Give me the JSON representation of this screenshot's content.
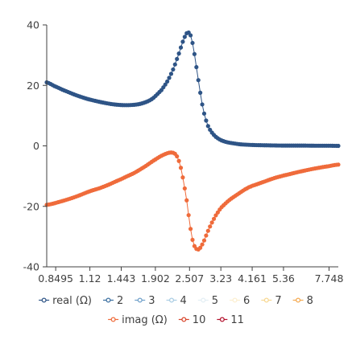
{
  "chart_data": {
    "type": "scatter",
    "x_scale": "log",
    "x_tick_labels": [
      "0.8495",
      "1.12",
      "1.443",
      "1.902",
      "2.507",
      "3.23",
      "4.161",
      "5.36",
      "7.748"
    ],
    "x_tick_values": [
      0.8495,
      1.12,
      1.443,
      1.902,
      2.507,
      3.23,
      4.161,
      5.36,
      7.748
    ],
    "xlim": [
      0.79,
      8.35
    ],
    "y_tick_labels": [
      "40",
      "20",
      "0",
      "-20",
      "-40"
    ],
    "y_tick_values": [
      40,
      20,
      0,
      -20,
      -40
    ],
    "ylim": [
      -40,
      40
    ],
    "grid": false,
    "legend_position": "bottom",
    "series": [
      {
        "name": "real (Ω)",
        "color": "#2e5486",
        "x": [
          0.79,
          0.84,
          0.9,
          1.0,
          1.1,
          1.25,
          1.4,
          1.55,
          1.7,
          1.85,
          2.0,
          2.1,
          2.2,
          2.3,
          2.4,
          2.47,
          2.53,
          2.58,
          2.64,
          2.72,
          2.8,
          2.9,
          3.0,
          3.1,
          3.23,
          3.4,
          3.6,
          3.8,
          4.161,
          4.6,
          5.36,
          6.2,
          7.0,
          7.748,
          8.35
        ],
        "y": [
          21,
          19.8,
          18.5,
          16.8,
          15.5,
          14.3,
          13.6,
          13.5,
          14.0,
          15.5,
          18.5,
          21.5,
          25.5,
          30.5,
          35.5,
          37.5,
          36.5,
          33.0,
          27.0,
          19.0,
          12.0,
          7.0,
          4.5,
          3.0,
          1.9,
          1.2,
          0.8,
          0.5,
          0.3,
          0.2,
          0.1,
          0.1,
          0.05,
          0.05,
          0.0
        ]
      },
      {
        "name": "2",
        "color": "#3b6fa0",
        "x": [],
        "y": []
      },
      {
        "name": "3",
        "color": "#6e9fc9",
        "x": [],
        "y": []
      },
      {
        "name": "4",
        "color": "#a9cce3",
        "x": [],
        "y": []
      },
      {
        "name": "5",
        "color": "#e3eef4",
        "x": [],
        "y": []
      },
      {
        "name": "6",
        "color": "#fcefd0",
        "x": [],
        "y": []
      },
      {
        "name": "7",
        "color": "#f8d891",
        "x": [],
        "y": []
      },
      {
        "name": "8",
        "color": "#f4a94f",
        "x": [],
        "y": []
      },
      {
        "name": "imag (Ω)",
        "color": "#ef6b3b",
        "x": [
          0.79,
          0.9,
          1.0,
          1.12,
          1.25,
          1.443,
          1.6,
          1.75,
          1.902,
          2.05,
          2.17,
          2.25,
          2.32,
          2.38,
          2.45,
          2.507,
          2.56,
          2.62,
          2.7,
          2.8,
          2.9,
          3.0,
          3.1,
          3.23,
          3.45,
          3.7,
          4.0,
          4.161,
          4.6,
          5.0,
          5.36,
          6.0,
          6.8,
          7.748,
          8.35
        ],
        "y": [
          -19.5,
          -18.2,
          -16.8,
          -15.0,
          -13.5,
          -11.0,
          -9.0,
          -6.8,
          -4.5,
          -2.8,
          -2.2,
          -3.0,
          -6.0,
          -11.0,
          -18.0,
          -25.0,
          -30.5,
          -33.5,
          -34.2,
          -32.0,
          -28.5,
          -25.5,
          -23.0,
          -20.5,
          -18.0,
          -16.0,
          -14.0,
          -13.2,
          -11.8,
          -10.6,
          -9.8,
          -8.7,
          -7.6,
          -6.7,
          -6.2
        ]
      },
      {
        "name": "10",
        "color": "#d8462c",
        "x": [],
        "y": []
      },
      {
        "name": "11",
        "color": "#b3122e",
        "x": [],
        "y": []
      }
    ]
  }
}
